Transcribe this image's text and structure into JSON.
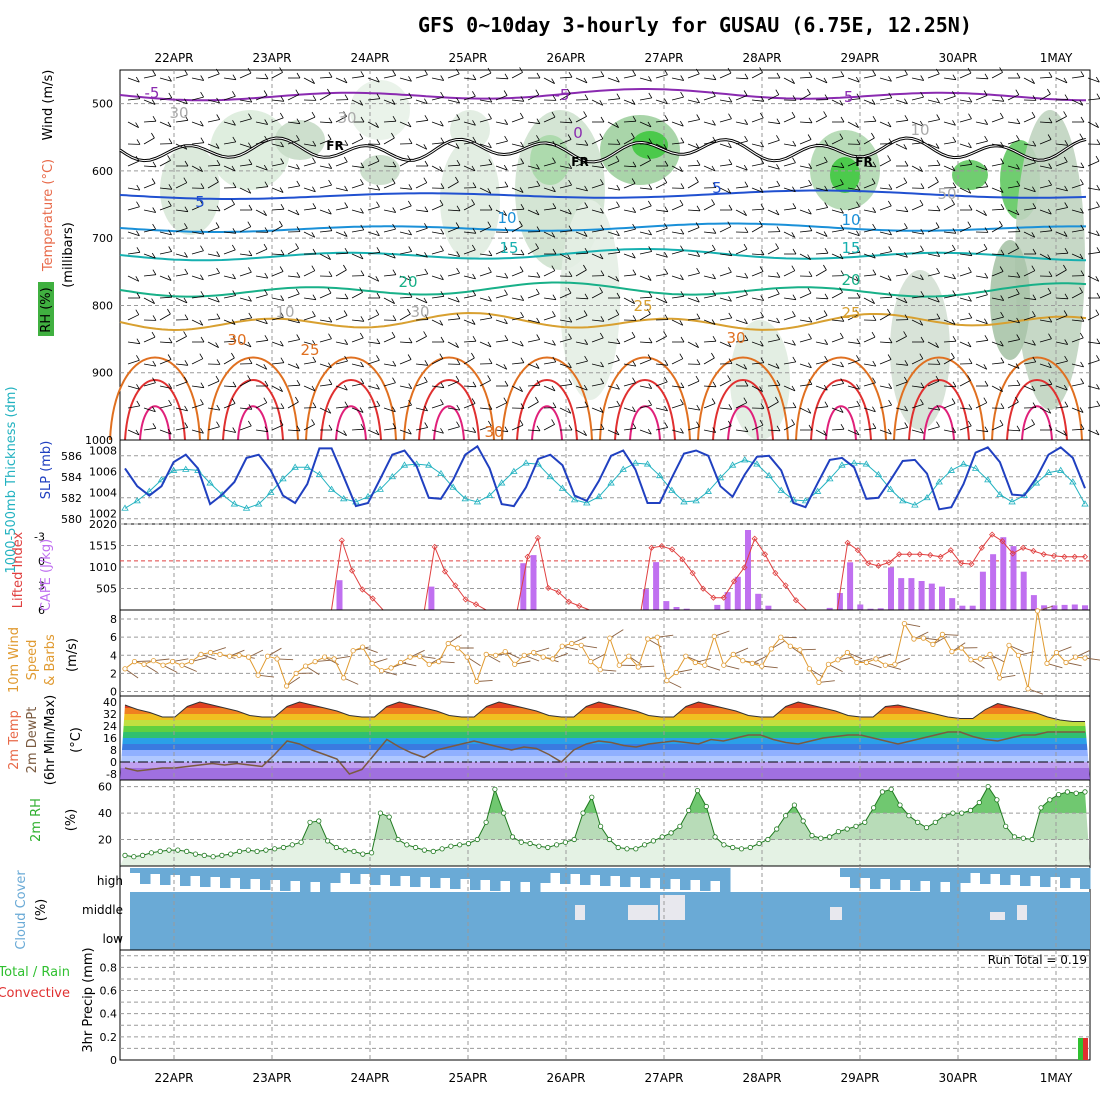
{
  "title": "GFS 0~10day 3-hourly for GUSAU (6.75E, 12.25N)",
  "dates": [
    "22APR",
    "23APR",
    "24APR",
    "25APR",
    "26APR",
    "27APR",
    "28APR",
    "29APR",
    "30APR",
    "1MAY"
  ],
  "colors": {
    "grid": "#9a9a9a",
    "rh": "#2db52d",
    "temperature": "#e86a4a",
    "wind": "#000000",
    "thickness": "#22b2c0",
    "slp": "#2040c0",
    "cape": "#c070f0",
    "lifted_index": "#e04040",
    "wind10m": "#e09a30",
    "barb10m": "#8a6040",
    "dewpoint": "#7a5a40",
    "rh2m": "#30b030",
    "cloud": "#6aaad6",
    "precip_total": "#30c030",
    "precip_conv": "#e03030"
  },
  "panels": {
    "upper": {
      "y_label": "(millibars)",
      "labels": {
        "wind": "Wind (m/s)",
        "temperature": "Temperature (°C)",
        "rh": "RH (%)"
      },
      "y_ticks": [
        "500",
        "600",
        "700",
        "800",
        "900",
        "1000"
      ],
      "freezing_label": "FR",
      "contour_labels": [
        {
          "text": "-5",
          "color": "#8a2ab0"
        },
        {
          "text": "-5",
          "color": "#8a2ab0"
        },
        {
          "text": "-5",
          "color": "#8a2ab0"
        },
        {
          "text": "0",
          "color": "#8a2ab0"
        },
        {
          "text": "5",
          "color": "#2050d0"
        },
        {
          "text": "5",
          "color": "#2050d0"
        },
        {
          "text": "10",
          "color": "#1a90d8"
        },
        {
          "text": "10",
          "color": "#1a90d8"
        },
        {
          "text": "15",
          "color": "#16b0b0"
        },
        {
          "text": "15",
          "color": "#16b0b0"
        },
        {
          "text": "20",
          "color": "#18b088"
        },
        {
          "text": "20",
          "color": "#18b088"
        },
        {
          "text": "25",
          "color": "#d8a030"
        },
        {
          "text": "25",
          "color": "#d8a030"
        },
        {
          "text": "30",
          "color": "#e07020"
        },
        {
          "text": "30",
          "color": "#e07020"
        },
        {
          "text": "25",
          "color": "#e07020"
        },
        {
          "text": "30",
          "color": "#e07020"
        },
        {
          "text": "10",
          "color": "#aaaaaa"
        },
        {
          "text": "30",
          "color": "#aaaaaa"
        },
        {
          "text": "30",
          "color": "#aaaaaa"
        },
        {
          "text": "30",
          "color": "#aaaaaa"
        },
        {
          "text": "10",
          "color": "#aaaaaa"
        },
        {
          "text": "50",
          "color": "#aaaaaa"
        }
      ]
    },
    "slp": {
      "label_left": "1000-500mb Thickness (dm)",
      "label_right": "SLP (mb)",
      "y_ticks_left": [
        "586",
        "584",
        "582",
        "580"
      ],
      "y_ticks_right": [
        "1008",
        "1006",
        "1004",
        "1002"
      ]
    },
    "cape": {
      "label_left": "Lifted Index",
      "label_right": "CAPE (J/kg)",
      "y_ticks_left": [
        "-3",
        "0",
        "3",
        "6"
      ],
      "y_ticks_right": [
        "2020",
        "1515",
        "1010",
        "505"
      ]
    },
    "wind10m": {
      "label_lines": [
        "10m Wind",
        "Speed",
        "& Barbs"
      ],
      "unit": "(m/s)",
      "y_ticks": [
        "8",
        "6",
        "4",
        "2",
        "0"
      ]
    },
    "temp2m": {
      "label_lines": [
        "2m Temp",
        "2m DewPt",
        "(6hr Min/Max)"
      ],
      "unit": "(°C)",
      "y_ticks": [
        "40",
        "32",
        "24",
        "16",
        "8",
        "0",
        "-8"
      ]
    },
    "rh2m": {
      "label": "2m RH",
      "unit": "(%)",
      "y_ticks": [
        "60",
        "40",
        "20"
      ]
    },
    "cloud": {
      "label": "Cloud Cover",
      "unit": "(%)",
      "levels": [
        "high",
        "middle",
        "low"
      ]
    },
    "precip": {
      "label_lines": [
        "Total / Rain",
        "Convective"
      ],
      "unit_label": "3hr Precip (mm)",
      "y_ticks": [
        "0.8",
        "0.6",
        "0.4",
        "0.2",
        "0"
      ],
      "y_ticks_all": [
        "0.8",
        "0.6",
        "0.4",
        "0.2",
        "0"
      ],
      "extra_ticks": [
        "0.9",
        "0.7",
        "0.5",
        "0.3",
        "0.1"
      ],
      "run_total": "Run Total = 0.19"
    }
  },
  "chart_data": [
    {
      "type": "heatmap",
      "title": "GFS 0~10day 3-hourly for GUSAU (6.75E, 12.25N)",
      "ylabel": "(millibars)",
      "ylim": [
        1000,
        450
      ],
      "contours": "temperature, RH, wind barbs"
    },
    {
      "type": "line",
      "ylabel_left": "1000-500mb Thickness (dm)",
      "ylabel_right": "SLP (mb)",
      "ylim_slp": [
        1001,
        1009
      ],
      "ylim_thick": [
        579.5,
        587.5
      ],
      "series": [
        {
          "name": "SLP (mb)",
          "values": [
            1006.3,
            1004.6,
            1003.7,
            1004.6,
            1006.9,
            1007.6,
            1006.3,
            1002.9,
            1003.8,
            1005.0,
            1007.3,
            1007.6,
            1006.1,
            1003.7,
            1003.0,
            1004.8,
            1008.2,
            1008.2,
            1005.5,
            1002.7,
            1003.0,
            1005.3,
            1007.6,
            1008.0,
            1006.5,
            1003.5,
            1003.4,
            1005.2,
            1007.6,
            1008.4,
            1006.3,
            1002.9,
            1002.7,
            1004.5,
            1007.2,
            1007.6,
            1006.6,
            1003.7,
            1003.2,
            1005.1,
            1007.5,
            1008.0,
            1006.2,
            1003.0,
            1003.0,
            1005.4,
            1007.7,
            1008.0,
            1007.5,
            1004.6,
            1003.6,
            1005.7,
            1007.4,
            1007.5,
            1006.1,
            1003.0,
            1002.6,
            1004.9,
            1007.1,
            1007.3,
            1006.4,
            1003.4,
            1003.5,
            1005.2,
            1007.0,
            1007.1,
            1005.8,
            1002.4,
            1002.6,
            1004.8,
            1007.8,
            1008.3,
            1006.9,
            1003.8,
            1003.7,
            1005.4,
            1007.6,
            1008.3,
            1007.3,
            1004.4
          ]
        },
        {
          "name": "Thickness (dm)",
          "values": [
            581.0,
            581.7,
            582.6,
            583.7,
            584.6,
            584.7,
            584.6,
            583.4,
            582.3,
            581.4,
            581.0,
            581.4,
            582.5,
            583.8,
            584.9,
            584.9,
            584.2,
            582.8,
            581.9,
            581.6,
            582.1,
            582.8,
            584.0,
            585.1,
            585.2,
            585.1,
            584.3,
            583.0,
            581.9,
            581.6,
            582.2,
            583.4,
            584.5,
            585.3,
            585.2,
            584.0,
            582.9,
            581.8,
            581.5,
            582.1,
            583.4,
            584.7,
            585.3,
            585.2,
            584.1,
            582.7,
            581.6,
            581.7,
            582.6,
            583.9,
            585.1,
            585.6,
            585.2,
            584.1,
            582.7,
            581.8,
            581.7,
            582.6,
            583.8,
            585.1,
            585.3,
            585.2,
            584.2,
            582.8,
            581.7,
            581.3,
            582.0,
            583.5,
            584.6,
            585.2,
            584.8,
            583.7,
            582.3,
            581.6,
            582.2,
            583.4,
            584.4,
            584.6,
            583.5,
            581.4
          ]
        }
      ]
    },
    {
      "type": "bar",
      "ylabel_left": "Lifted Index",
      "ylabel_right": "CAPE (J/kg)",
      "ylim_cape": [
        0,
        2020
      ],
      "ylim_li": [
        6,
        -4.5
      ],
      "series": [
        {
          "name": "CAPE (J/kg)",
          "values": [
            0,
            0,
            0,
            0,
            0,
            0,
            0,
            0,
            0,
            0,
            0,
            0,
            0,
            0,
            0,
            0,
            0,
            0,
            0,
            0,
            0,
            700,
            0,
            0,
            0,
            0,
            0,
            0,
            0,
            0,
            550,
            0,
            0,
            0,
            0,
            0,
            0,
            0,
            0,
            1100,
            1290,
            0,
            0,
            0,
            0,
            0,
            0,
            0,
            0,
            0,
            0,
            490,
            1125,
            210,
            70,
            30,
            0,
            10,
            120,
            420,
            780,
            1880,
            380,
            100,
            0,
            0,
            0,
            0,
            0,
            50,
            400,
            1120,
            130,
            30,
            40,
            1000,
            750,
            750,
            680,
            620,
            550,
            280,
            100,
            100,
            900,
            1310,
            1710,
            1500,
            900,
            350,
            110,
            110,
            120,
            130,
            110
          ]
        },
        {
          "name": "Lifted Index",
          "values": [
            6,
            6,
            6,
            6,
            6,
            6,
            6,
            6,
            6,
            6,
            6,
            6,
            6,
            6,
            6,
            6,
            6,
            6,
            6,
            6,
            6,
            -2.5,
            1.2,
            3.5,
            4.6,
            6,
            6,
            6,
            6,
            6,
            -1.7,
            1.3,
            3,
            4.7,
            5.3,
            6,
            6,
            6,
            6,
            -0.5,
            -2.8,
            3.3,
            3.8,
            5,
            5.5,
            6,
            6,
            6,
            6,
            6,
            6,
            -1.6,
            -1.8,
            -1.4,
            -0.2,
            1.5,
            3.4,
            4.5,
            4.5,
            2.5,
            0.8,
            -2.7,
            -0.8,
            1.5,
            3,
            4.8,
            6,
            6,
            6,
            6,
            -2.2,
            -1.3,
            0.3,
            0.6,
            0.2,
            -0.8,
            -0.8,
            -0.8,
            -0.7,
            -0.5,
            -1.3,
            0.3,
            0.4,
            -1.6,
            -3.2,
            -2.4,
            -0.9,
            -1.6,
            -1.2,
            -0.8,
            -0.6,
            -0.5,
            -0.5,
            -0.5
          ]
        }
      ]
    },
    {
      "type": "line",
      "ylabel": "10m Wind Speed & Barbs (m/s)",
      "ylim": [
        -0.5,
        9
      ],
      "series": [
        {
          "name": "10m Wind Speed",
          "values": [
            2.5,
            3.3,
            3.0,
            3.4,
            2.9,
            3.3,
            2.9,
            3.3,
            4.1,
            4.3,
            4.1,
            3.9,
            4.0,
            3.8,
            1.8,
            3.9,
            3.6,
            0.6,
            2.0,
            2.8,
            3.3,
            3.8,
            3.6,
            1.5,
            4.5,
            4.9,
            3.1,
            2.3,
            2.6,
            3.2,
            3.8,
            3.9,
            3.0,
            3.3,
            5.3,
            4.8,
            3.8,
            1.1,
            4.1,
            4.0,
            4.4,
            3.0,
            4.0,
            4.3,
            3.8,
            3.6,
            5.0,
            5.3,
            5.1,
            3.3,
            2.4,
            5.9,
            2.9,
            3.9,
            2.7,
            5.8,
            6.0,
            1.2,
            2.1,
            3.9,
            3.2,
            2.9,
            6.1,
            2.9,
            4.1,
            3.4,
            3.1,
            2.8,
            4.7,
            6.0,
            5.0,
            4.6,
            2.5,
            1.0,
            3.0,
            3.5,
            4.3,
            3.2,
            3.2,
            3.6,
            2.9,
            3.0,
            7.5,
            5.8,
            5.9,
            5.2,
            6.3,
            4.4,
            4.8,
            3.5,
            3.6,
            4.1,
            1.5,
            5.1,
            4.0,
            0.3,
            8.9,
            3.1,
            4.3,
            3.2,
            3.8,
            3.7
          ]
        }
      ]
    },
    {
      "type": "area",
      "ylabel": "2m Temp / 2m DewPt (°C)",
      "ylim": [
        -12,
        44
      ],
      "series": [
        {
          "name": "2m Temp",
          "values": [
            38,
            35,
            33,
            30,
            30,
            37,
            40,
            38,
            36,
            34,
            31,
            30,
            30,
            37,
            40,
            38,
            36,
            34,
            31,
            30,
            30,
            37,
            40,
            38,
            36,
            34,
            31,
            30,
            30,
            37,
            40,
            38,
            36,
            34,
            31,
            30,
            30,
            37,
            40,
            38,
            36,
            34,
            31,
            30,
            30,
            37,
            40,
            38,
            36,
            34,
            31,
            30,
            30,
            37,
            40,
            38,
            36,
            34,
            31,
            30,
            30,
            37,
            38,
            36,
            34,
            32,
            30,
            29,
            29,
            35,
            39,
            37,
            35,
            33,
            30,
            28,
            27,
            27
          ]
        },
        {
          "name": "2m DewPt",
          "values": [
            -4,
            -6,
            -5,
            -4,
            -4,
            -3,
            -2,
            -1,
            -2,
            -1,
            -2,
            -3,
            5,
            14,
            12,
            8,
            5,
            2,
            -8,
            -5,
            5,
            15,
            10,
            6,
            3,
            8,
            10,
            12,
            14,
            12,
            10,
            8,
            10,
            9,
            5,
            0,
            8,
            12,
            14,
            13,
            11,
            10,
            12,
            13,
            14,
            13,
            12,
            15,
            14,
            16,
            18,
            18,
            15,
            13,
            12,
            14,
            16,
            17,
            18,
            18,
            16,
            14,
            12,
            14,
            16,
            18,
            20,
            20,
            17,
            15,
            14,
            16,
            18,
            18,
            20,
            20,
            20,
            20
          ]
        }
      ]
    },
    {
      "type": "area",
      "ylabel": "2m RH (%)",
      "ylim": [
        0,
        65
      ],
      "values": [
        8,
        7,
        8,
        10,
        11,
        12,
        12,
        11,
        9,
        8,
        7,
        8,
        9,
        11,
        12,
        11,
        12,
        13,
        14,
        16,
        18,
        33,
        34,
        19,
        14,
        12,
        11,
        9,
        10,
        40,
        37,
        20,
        16,
        14,
        12,
        11,
        13,
        15,
        16,
        17,
        20,
        33,
        58,
        40,
        22,
        18,
        17,
        15,
        14,
        16,
        18,
        20,
        40,
        52,
        30,
        20,
        14,
        13,
        13,
        16,
        19,
        22,
        25,
        30,
        42,
        57,
        45,
        22,
        16,
        14,
        13,
        14,
        17,
        20,
        28,
        38,
        46,
        34,
        23,
        21,
        22,
        26,
        28,
        30,
        33,
        44,
        56,
        58,
        46,
        38,
        33,
        29,
        33,
        38,
        40,
        40,
        42,
        48,
        60,
        50,
        30,
        22,
        21,
        20,
        44,
        50,
        54,
        56,
        55,
        56
      ]
    },
    {
      "type": "area",
      "ylabel": "Cloud Cover (%)",
      "levels": [
        "high",
        "middle",
        "low"
      ]
    },
    {
      "type": "bar",
      "ylabel": "3hr Precip (mm)",
      "ylim": [
        0,
        0.95
      ],
      "series": [
        {
          "name": "Total / Rain",
          "values_last": [
            0.19
          ]
        },
        {
          "name": "Convective",
          "values_last": [
            0.19
          ]
        }
      ]
    }
  ]
}
